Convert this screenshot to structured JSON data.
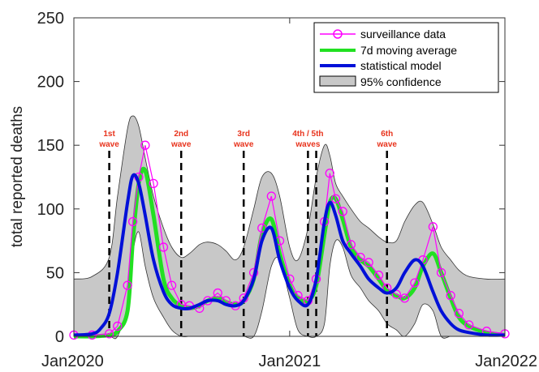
{
  "chart_data": {
    "type": "line",
    "title": "",
    "xlabel": "",
    "ylabel": "total reported deaths",
    "xlim": [
      "2020-01-01",
      "2022-01-01"
    ],
    "ylim": [
      0,
      250
    ],
    "xticks": [
      "Jan2020",
      "Jan2021",
      "Jan2022"
    ],
    "yticks": [
      0,
      50,
      100,
      150,
      200,
      250
    ],
    "grid": false,
    "legend_position": "top-right",
    "colors": {
      "surveillance": "#ff00ff",
      "moving_average": "#22e022",
      "model": "#0010d8",
      "confidence": "#c8c8c8"
    },
    "wave_markers": [
      {
        "label": [
          "1st",
          "wave"
        ],
        "date": "2020-03-01"
      },
      {
        "label": [
          "2nd",
          "wave"
        ],
        "date": "2020-07-01"
      },
      {
        "label": [
          "3rd",
          "wave"
        ],
        "date": "2020-10-15"
      },
      {
        "label": [
          "4th / 5th",
          "waves"
        ],
        "date": "2021-02-01"
      },
      {
        "label": [],
        "date": "2021-02-15"
      },
      {
        "label": [
          "6th",
          "wave"
        ],
        "date": "2021-06-15"
      }
    ],
    "series": [
      {
        "name": "surveillance data",
        "x": [
          "2020-01-01",
          "2020-02-01",
          "2020-03-01",
          "2020-03-15",
          "2020-04-01",
          "2020-04-10",
          "2020-04-20",
          "2020-05-01",
          "2020-05-15",
          "2020-06-01",
          "2020-06-15",
          "2020-07-01",
          "2020-07-15",
          "2020-08-01",
          "2020-08-15",
          "2020-09-01",
          "2020-09-15",
          "2020-10-01",
          "2020-10-15",
          "2020-11-01",
          "2020-11-15",
          "2020-12-01",
          "2020-12-15",
          "2021-01-01",
          "2021-01-15",
          "2021-02-01",
          "2021-02-15",
          "2021-03-01",
          "2021-03-10",
          "2021-03-20",
          "2021-04-01",
          "2021-04-15",
          "2021-05-01",
          "2021-05-15",
          "2021-06-01",
          "2021-06-15",
          "2021-07-01",
          "2021-07-15",
          "2021-08-01",
          "2021-08-15",
          "2021-09-01",
          "2021-09-15",
          "2021-10-01",
          "2021-10-15",
          "2021-11-01",
          "2021-12-01",
          "2022-01-01"
        ],
        "y": [
          1,
          1,
          2,
          8,
          40,
          90,
          125,
          150,
          120,
          70,
          40,
          25,
          24,
          22,
          28,
          34,
          28,
          24,
          30,
          50,
          85,
          110,
          75,
          45,
          32,
          28,
          45,
          90,
          128,
          108,
          98,
          72,
          62,
          58,
          48,
          38,
          33,
          30,
          42,
          60,
          86,
          50,
          32,
          18,
          9,
          4,
          2
        ]
      },
      {
        "name": "7d moving average",
        "x": [
          "2020-01-01",
          "2020-02-01",
          "2020-03-01",
          "2020-03-15",
          "2020-04-01",
          "2020-04-10",
          "2020-04-20",
          "2020-05-01",
          "2020-05-15",
          "2020-06-01",
          "2020-06-15",
          "2020-07-01",
          "2020-07-15",
          "2020-08-01",
          "2020-08-15",
          "2020-09-01",
          "2020-09-15",
          "2020-10-01",
          "2020-10-15",
          "2020-11-01",
          "2020-11-15",
          "2020-12-01",
          "2020-12-15",
          "2021-01-01",
          "2021-01-15",
          "2021-02-01",
          "2021-02-15",
          "2021-03-01",
          "2021-03-10",
          "2021-03-20",
          "2021-04-01",
          "2021-04-15",
          "2021-05-01",
          "2021-05-15",
          "2021-06-01",
          "2021-06-15",
          "2021-07-01",
          "2021-07-15",
          "2021-08-01",
          "2021-08-15",
          "2021-09-01",
          "2021-09-15",
          "2021-10-01",
          "2021-10-15",
          "2021-11-01",
          "2021-12-01",
          "2022-01-01"
        ],
        "y": [
          0,
          0,
          1,
          4,
          20,
          75,
          120,
          130,
          95,
          45,
          30,
          24,
          22,
          24,
          28,
          30,
          27,
          25,
          28,
          45,
          80,
          92,
          65,
          40,
          30,
          28,
          40,
          80,
          105,
          108,
          92,
          70,
          60,
          55,
          45,
          36,
          32,
          30,
          38,
          55,
          65,
          50,
          30,
          15,
          8,
          3,
          1
        ]
      },
      {
        "name": "statistical model",
        "x": [
          "2020-01-01",
          "2020-02-01",
          "2020-02-15",
          "2020-03-01",
          "2020-03-15",
          "2020-04-01",
          "2020-04-10",
          "2020-04-20",
          "2020-05-01",
          "2020-05-15",
          "2020-06-01",
          "2020-06-15",
          "2020-07-01",
          "2020-07-15",
          "2020-08-01",
          "2020-08-15",
          "2020-09-01",
          "2020-09-15",
          "2020-10-01",
          "2020-10-15",
          "2020-11-01",
          "2020-11-15",
          "2020-12-01",
          "2020-12-15",
          "2021-01-01",
          "2021-01-15",
          "2021-02-01",
          "2021-02-15",
          "2021-03-01",
          "2021-03-10",
          "2021-03-20",
          "2021-04-01",
          "2021-04-15",
          "2021-05-01",
          "2021-05-15",
          "2021-06-01",
          "2021-06-15",
          "2021-07-01",
          "2021-07-15",
          "2021-08-01",
          "2021-08-15",
          "2021-09-01",
          "2021-09-15",
          "2021-10-01",
          "2021-10-15",
          "2021-11-01",
          "2021-12-01",
          "2022-01-01"
        ],
        "y": [
          1,
          2,
          6,
          18,
          50,
          105,
          126,
          120,
          95,
          60,
          35,
          25,
          22,
          22,
          25,
          28,
          28,
          25,
          24,
          28,
          45,
          75,
          85,
          60,
          38,
          28,
          25,
          45,
          90,
          105,
          95,
          75,
          65,
          55,
          45,
          38,
          34,
          38,
          50,
          60,
          55,
          35,
          20,
          10,
          5,
          3,
          1,
          1
        ]
      }
    ],
    "confidence_band": {
      "name": "95% confidence",
      "x": [
        "2020-01-01",
        "2020-02-01",
        "2020-03-01",
        "2020-03-15",
        "2020-04-01",
        "2020-04-10",
        "2020-04-20",
        "2020-05-01",
        "2020-05-15",
        "2020-06-01",
        "2020-06-15",
        "2020-07-01",
        "2020-07-15",
        "2020-08-01",
        "2020-08-15",
        "2020-09-01",
        "2020-09-15",
        "2020-10-01",
        "2020-10-15",
        "2020-11-01",
        "2020-11-15",
        "2020-12-01",
        "2020-12-15",
        "2021-01-01",
        "2021-01-15",
        "2021-02-01",
        "2021-02-15",
        "2021-03-01",
        "2021-03-10",
        "2021-03-20",
        "2021-04-01",
        "2021-04-15",
        "2021-05-01",
        "2021-05-15",
        "2021-06-01",
        "2021-06-15",
        "2021-07-01",
        "2021-07-15",
        "2021-08-01",
        "2021-08-15",
        "2021-09-01",
        "2021-09-15",
        "2021-10-01",
        "2021-10-15",
        "2021-11-01",
        "2021-12-01",
        "2022-01-01"
      ],
      "upper": [
        45,
        47,
        62,
        110,
        163,
        173,
        165,
        140,
        110,
        85,
        70,
        62,
        65,
        72,
        74,
        72,
        67,
        60,
        70,
        100,
        125,
        128,
        110,
        70,
        60,
        85,
        125,
        150,
        142,
        120,
        110,
        100,
        90,
        85,
        78,
        74,
        75,
        90,
        103,
        105,
        88,
        70,
        60,
        52,
        47,
        45,
        45
      ],
      "lower": [
        0,
        0,
        0,
        0,
        25,
        65,
        82,
        55,
        30,
        15,
        5,
        0,
        0,
        0,
        0,
        0,
        0,
        0,
        0,
        0,
        20,
        55,
        60,
        30,
        5,
        0,
        0,
        10,
        55,
        75,
        70,
        48,
        38,
        28,
        20,
        10,
        5,
        0,
        10,
        25,
        20,
        0,
        0,
        0,
        0,
        0,
        0
      ]
    }
  }
}
